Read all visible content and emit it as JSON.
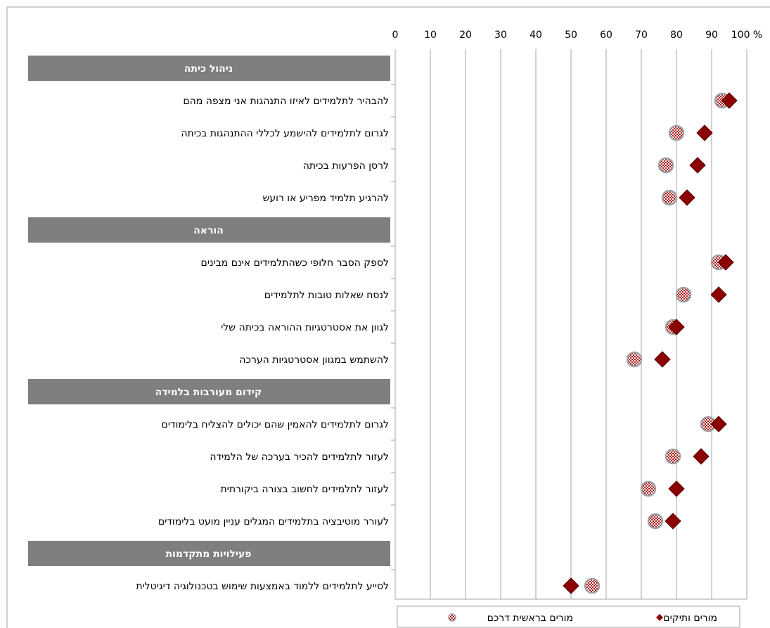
{
  "chart_data": {
    "type": "scatter",
    "title": "",
    "xlabel": "",
    "ylabel": "",
    "xlim": [
      0,
      100
    ],
    "x_ticks": [
      "0",
      "10",
      "20",
      "30",
      "40",
      "50",
      "60",
      "70",
      "80",
      "90",
      "100 %"
    ],
    "grid": true,
    "legend_position": "bottom",
    "colors": {
      "veteran": "#8b0000",
      "novice": "#b01818",
      "section_header": "#7f7f7f",
      "gridline": "#a6a6a6"
    },
    "sections": [
      {
        "title": "ניהול כיתה",
        "items": [
          {
            "label": "להבהיר לתלמידים לאיזו התנהגות אני מצפה מהם",
            "veteran": 95,
            "novice": 93
          },
          {
            "label": "לגרום לתלמידים להישמע לכללי ההתנהגות בכיתה",
            "veteran": 88,
            "novice": 80
          },
          {
            "label": "לרסן הפרעות בכיתה",
            "veteran": 86,
            "novice": 77
          },
          {
            "label": "להרגיע תלמיד מפריע או רועש",
            "veteran": 83,
            "novice": 78
          }
        ]
      },
      {
        "title": "הוראה",
        "items": [
          {
            "label": "לספק הסבר חלופי כשהתלמידים אינם מבינים",
            "veteran": 94,
            "novice": 92
          },
          {
            "label": "לנסח שאלות טובות לתלמידים",
            "veteran": 92,
            "novice": 82
          },
          {
            "label": "לגוון את אסטרטגיות ההוראה בכיתה שלי",
            "veteran": 80,
            "novice": 79
          },
          {
            "label": "להשתמש במגוון אסטרטגיות הערכה",
            "veteran": 76,
            "novice": 68
          }
        ]
      },
      {
        "title": "קידום מעורבות בלמידה",
        "items": [
          {
            "label": "לגרום לתלמידים להאמין שהם יכולים להצליח בלימודים",
            "veteran": 92,
            "novice": 89
          },
          {
            "label": "לעזור לתלמידים להכיר בערכה של הלמידה",
            "veteran": 87,
            "novice": 79
          },
          {
            "label": "לעזור לתלמידים לחשוב בצורה ביקורתית",
            "veteran": 80,
            "novice": 72
          },
          {
            "label": "לעורר מוטיבציה בתלמידים המגלים עניין מועט בלימודים",
            "veteran": 79,
            "novice": 74
          }
        ]
      },
      {
        "title": "פעילויות מתקדמות",
        "items": [
          {
            "label": "לסייע לתלמידים ללמוד באמצעות שימוש בטכנולוגיה דיגיטלית",
            "veteran": 50,
            "novice": 56
          }
        ]
      }
    ],
    "series": [
      {
        "key": "veteran",
        "name": "מורים ותיקים",
        "marker": "diamond"
      },
      {
        "key": "novice",
        "name": "מורים בראשית דרכם",
        "marker": "circle-check"
      }
    ]
  }
}
